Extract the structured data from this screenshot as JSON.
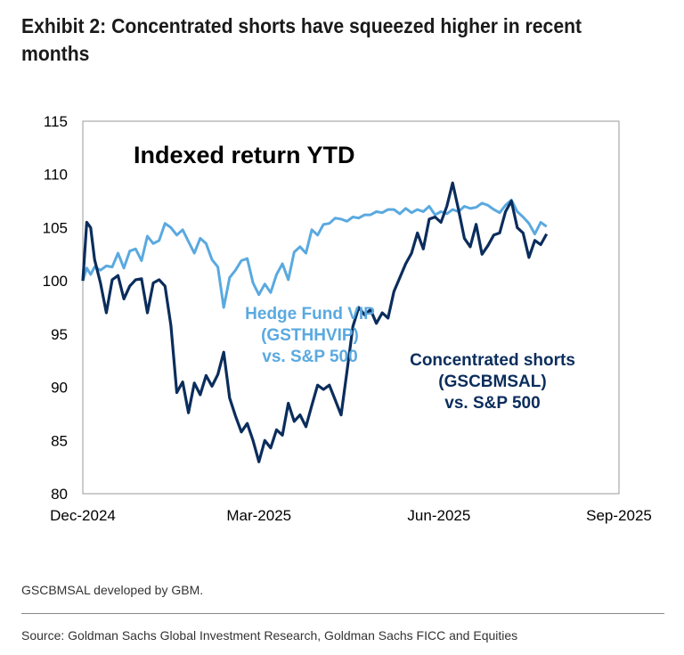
{
  "header": {
    "title": "Exhibit 2: Concentrated shorts have squeezed higher in recent months"
  },
  "footer": {
    "note": "GSCBMSAL developed by GBM.",
    "source": "Source: Goldman Sachs Global Investment Research, Goldman Sachs FICC and Equities"
  },
  "chart_data": {
    "type": "line",
    "title": "Indexed return YTD",
    "xlabel": "",
    "ylabel": "",
    "ylim": [
      80,
      115
    ],
    "yticks": [
      80,
      85,
      90,
      95,
      100,
      105,
      110,
      115
    ],
    "xlim": [
      "2024-12-01",
      "2025-09-01"
    ],
    "xticks": [
      {
        "date": "2024-12-01",
        "label": "Dec-2024"
      },
      {
        "date": "2025-03-01",
        "label": "Mar-2025"
      },
      {
        "date": "2025-06-01",
        "label": "Jun-2025"
      },
      {
        "date": "2025-09-01",
        "label": "Sep-2025"
      }
    ],
    "grid": false,
    "series": [
      {
        "name": "Hedge Fund VIP (GSTHHVIP) vs. S&P 500",
        "label_lines": [
          "Hedge Fund VIP",
          "(GSTHHVIP)",
          "vs. S&P 500"
        ],
        "color": "#5aa9e0",
        "x": [
          "2024-12-01",
          "2024-12-03",
          "2024-12-05",
          "2024-12-07",
          "2024-12-10",
          "2024-12-13",
          "2024-12-16",
          "2024-12-19",
          "2024-12-22",
          "2024-12-25",
          "2024-12-28",
          "2024-12-31",
          "2025-01-03",
          "2025-01-06",
          "2025-01-09",
          "2025-01-12",
          "2025-01-15",
          "2025-01-18",
          "2025-01-21",
          "2025-01-24",
          "2025-01-27",
          "2025-01-30",
          "2025-02-02",
          "2025-02-05",
          "2025-02-08",
          "2025-02-11",
          "2025-02-14",
          "2025-02-17",
          "2025-02-20",
          "2025-02-23",
          "2025-02-26",
          "2025-03-01",
          "2025-03-04",
          "2025-03-07",
          "2025-03-10",
          "2025-03-13",
          "2025-03-16",
          "2025-03-19",
          "2025-03-22",
          "2025-03-25",
          "2025-03-28",
          "2025-03-31",
          "2025-04-03",
          "2025-04-06",
          "2025-04-09",
          "2025-04-12",
          "2025-04-15",
          "2025-04-18",
          "2025-04-21",
          "2025-04-24",
          "2025-04-27",
          "2025-04-30",
          "2025-05-03",
          "2025-05-06",
          "2025-05-09",
          "2025-05-12",
          "2025-05-15",
          "2025-05-18",
          "2025-05-21",
          "2025-05-24",
          "2025-05-27",
          "2025-05-30",
          "2025-06-02",
          "2025-06-05",
          "2025-06-08",
          "2025-06-11",
          "2025-06-14",
          "2025-06-17",
          "2025-06-20",
          "2025-06-23",
          "2025-06-26",
          "2025-06-29",
          "2025-07-02",
          "2025-07-05",
          "2025-07-08",
          "2025-07-11",
          "2025-07-14",
          "2025-07-17",
          "2025-07-20",
          "2025-07-23",
          "2025-07-26"
        ],
        "values": [
          100.0,
          101.2,
          100.6,
          101.3,
          101.0,
          101.4,
          101.3,
          102.6,
          101.2,
          102.8,
          103.0,
          101.9,
          104.2,
          103.5,
          103.8,
          105.4,
          105.0,
          104.3,
          104.8,
          103.7,
          102.6,
          104.0,
          103.5,
          102.0,
          101.3,
          97.5,
          100.3,
          101.0,
          101.9,
          102.1,
          99.8,
          98.7,
          99.7,
          98.9,
          100.6,
          101.6,
          100.1,
          102.7,
          103.2,
          102.6,
          104.8,
          104.3,
          105.3,
          105.4,
          105.9,
          105.8,
          105.6,
          106.0,
          105.9,
          106.2,
          106.2,
          106.5,
          106.4,
          106.7,
          106.7,
          106.3,
          106.8,
          106.4,
          106.7,
          106.5,
          107.0,
          106.2,
          106.5,
          106.3,
          106.7,
          106.5,
          107.0,
          106.8,
          106.9,
          107.3,
          107.1,
          106.7,
          106.4,
          107.1,
          107.6,
          106.5,
          106.0,
          105.4,
          104.4,
          105.5,
          105.1
        ]
      },
      {
        "name": "Concentrated shorts (GSCBMSAL) vs. S&P 500",
        "label_lines": [
          "Concentrated shorts",
          "(GSCBMSAL)",
          "vs. S&P 500"
        ],
        "color": "#0b2d5c",
        "x": [
          "2024-12-01",
          "2024-12-03",
          "2024-12-05",
          "2024-12-07",
          "2024-12-10",
          "2024-12-13",
          "2024-12-16",
          "2024-12-19",
          "2024-12-22",
          "2024-12-25",
          "2024-12-28",
          "2024-12-31",
          "2025-01-03",
          "2025-01-06",
          "2025-01-09",
          "2025-01-12",
          "2025-01-15",
          "2025-01-18",
          "2025-01-21",
          "2025-01-24",
          "2025-01-27",
          "2025-01-30",
          "2025-02-02",
          "2025-02-05",
          "2025-02-08",
          "2025-02-11",
          "2025-02-14",
          "2025-02-17",
          "2025-02-20",
          "2025-02-23",
          "2025-02-26",
          "2025-03-01",
          "2025-03-04",
          "2025-03-07",
          "2025-03-10",
          "2025-03-13",
          "2025-03-16",
          "2025-03-19",
          "2025-03-22",
          "2025-03-25",
          "2025-03-28",
          "2025-03-31",
          "2025-04-03",
          "2025-04-06",
          "2025-04-09",
          "2025-04-12",
          "2025-04-15",
          "2025-04-18",
          "2025-04-21",
          "2025-04-24",
          "2025-04-27",
          "2025-04-30",
          "2025-05-03",
          "2025-05-06",
          "2025-05-09",
          "2025-05-12",
          "2025-05-15",
          "2025-05-18",
          "2025-05-21",
          "2025-05-24",
          "2025-05-27",
          "2025-05-30",
          "2025-06-02",
          "2025-06-05",
          "2025-06-08",
          "2025-06-11",
          "2025-06-14",
          "2025-06-17",
          "2025-06-20",
          "2025-06-23",
          "2025-06-26",
          "2025-06-29",
          "2025-07-02",
          "2025-07-05",
          "2025-07-08",
          "2025-07-11",
          "2025-07-14",
          "2025-07-17",
          "2025-07-20",
          "2025-07-23",
          "2025-07-26"
        ],
        "values": [
          100.0,
          105.5,
          105.0,
          102.0,
          99.8,
          97.0,
          100.1,
          100.5,
          98.3,
          99.5,
          100.1,
          100.2,
          97.0,
          99.8,
          100.1,
          99.5,
          95.8,
          89.5,
          90.5,
          87.6,
          90.4,
          89.3,
          91.1,
          90.1,
          91.2,
          93.3,
          89.0,
          87.3,
          85.8,
          86.6,
          85.0,
          83.0,
          85.0,
          84.3,
          86.0,
          85.5,
          88.5,
          86.8,
          87.4,
          86.3,
          88.3,
          90.2,
          89.8,
          90.2,
          88.8,
          87.4,
          91.5,
          95.7,
          97.5,
          96.8,
          97.3,
          96.0,
          97.0,
          96.5,
          99.0,
          100.3,
          101.6,
          102.6,
          104.5,
          103.0,
          105.8,
          106.0,
          105.5,
          107.0,
          109.2,
          106.7,
          104.0,
          103.2,
          105.3,
          102.5,
          103.3,
          104.3,
          104.5,
          106.5,
          107.5,
          105.0,
          104.5,
          102.2,
          103.8,
          103.4,
          104.4
        ]
      }
    ]
  }
}
